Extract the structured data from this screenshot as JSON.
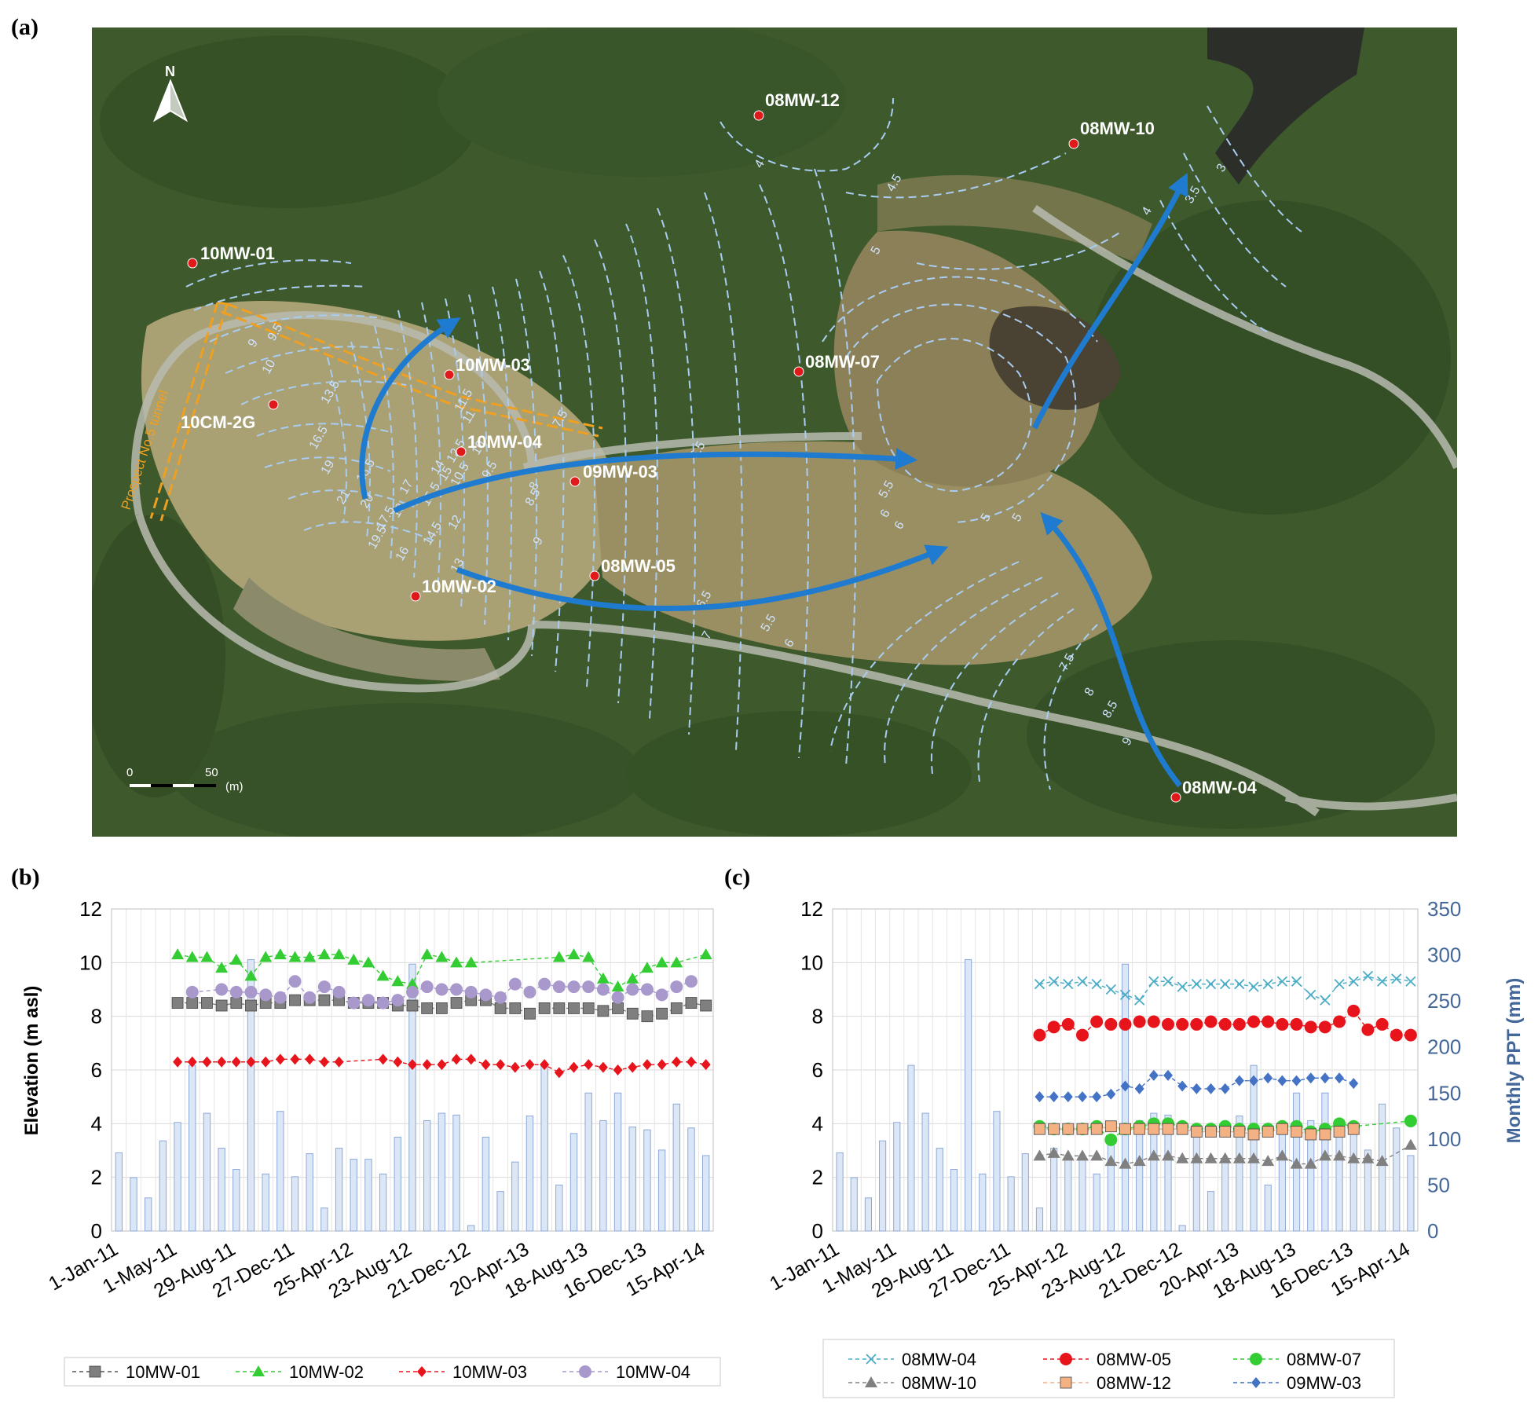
{
  "panels": {
    "a": "(a)",
    "b": "(b)",
    "c": "(c)"
  },
  "map": {
    "north_label": "N",
    "scale": {
      "start": "0",
      "end": "50",
      "unit": "(m)"
    },
    "tunnel_label": "Prospect No.5 tunnel",
    "colors": {
      "contour": "#a9cdf2",
      "flow_arrow": "#1e7bd0",
      "well": "#e0191b",
      "tunnel": "#f0a020"
    },
    "wells": [
      "10MW-01",
      "10MW-03",
      "10CM-2G",
      "10MW-04",
      "09MW-03",
      "10MW-02",
      "08MW-05",
      "08MW-12",
      "08MW-10",
      "08MW-07",
      "08MW-04"
    ],
    "contour_labels": [
      "9",
      "9.5",
      "10",
      "13.5",
      "16.5",
      "19",
      "21",
      "20",
      "19.5",
      "18.5",
      "17.5",
      "18",
      "17",
      "16",
      "15.5",
      "15",
      "14.5",
      "14",
      "13",
      "12.5",
      "12",
      "11.5",
      "11",
      "10.5",
      "10",
      "9.5",
      "9",
      "8.5",
      "8",
      "7.5",
      "6.5",
      "6",
      "5.5",
      "5",
      "7",
      "6.5",
      "6",
      "5.5",
      "7.5",
      "8",
      "8.5",
      "9",
      "4",
      "4.5",
      "5",
      "3",
      "3.5",
      "4",
      "5",
      "6"
    ]
  },
  "chart_b": {
    "ylabel": "Elevation (m asl)",
    "y_ticks": [
      "0",
      "2",
      "4",
      "6",
      "8",
      "10",
      "12"
    ],
    "x_ticks": [
      "1-Jan-11",
      "1-May-11",
      "29-Aug-11",
      "27-Dec-11",
      "25-Apr-12",
      "23-Aug-12",
      "21-Dec-12",
      "20-Apr-13",
      "18-Aug-13",
      "16-Dec-13",
      "15-Apr-14"
    ],
    "legend": [
      "10MW-01",
      "10MW-02",
      "10MW-03",
      "10MW-04"
    ]
  },
  "chart_c": {
    "ylabel_right": "Monthly PPT (mm)",
    "y_ticks": [
      "0",
      "2",
      "4",
      "6",
      "8",
      "10",
      "12"
    ],
    "y2_ticks": [
      "0",
      "50",
      "100",
      "150",
      "200",
      "250",
      "300",
      "350"
    ],
    "x_ticks": [
      "1-Jan-11",
      "1-May-11",
      "29-Aug-11",
      "27-Dec-11",
      "25-Apr-12",
      "23-Aug-12",
      "21-Dec-12",
      "20-Apr-13",
      "18-Aug-13",
      "16-Dec-13",
      "15-Apr-14"
    ],
    "legend": [
      "08MW-04",
      "08MW-05",
      "08MW-07",
      "08MW-10",
      "08MW-12",
      "09MW-03"
    ]
  },
  "chart_data": [
    {
      "type": "line",
      "title": "",
      "ylabel": "Elevation (m asl)",
      "ylim": [
        0,
        12
      ],
      "xlim_index": [
        0,
        40
      ],
      "grid": true,
      "legend_position": "bottom",
      "precipitation_mm": [
        85,
        58,
        36,
        98,
        118,
        180,
        128,
        90,
        67,
        295,
        62,
        130,
        59,
        84,
        25,
        90,
        78,
        78,
        62,
        102,
        290,
        120,
        128,
        126,
        6,
        102,
        43,
        75,
        125,
        180,
        50,
        106,
        150,
        120,
        150,
        113,
        110,
        88,
        138,
        112,
        82
      ],
      "series": [
        {
          "name": "10MW-01",
          "color": "#7f7f7f",
          "marker": "square",
          "x": [
            4,
            5,
            6,
            7,
            8,
            9,
            10,
            11,
            12,
            13,
            14,
            15,
            16,
            17,
            18,
            19,
            20,
            21,
            22,
            23,
            24,
            25,
            26,
            27,
            28,
            29,
            30,
            31,
            32,
            33,
            34,
            35,
            36,
            37,
            38,
            39,
            40
          ],
          "values": [
            8.5,
            8.5,
            8.5,
            8.4,
            8.5,
            8.4,
            8.5,
            8.5,
            8.6,
            8.6,
            8.6,
            8.6,
            8.5,
            8.5,
            8.5,
            8.4,
            8.4,
            8.3,
            8.3,
            8.5,
            8.6,
            8.6,
            8.3,
            8.3,
            8.1,
            8.3,
            8.3,
            8.3,
            8.3,
            8.2,
            8.3,
            8.1,
            8.0,
            8.1,
            8.3,
            8.5,
            8.4
          ]
        },
        {
          "name": "10MW-02",
          "color": "#33cc33",
          "marker": "triangle",
          "x": [
            4,
            5,
            6,
            7,
            8,
            9,
            10,
            11,
            12,
            13,
            14,
            15,
            16,
            17,
            18,
            19,
            20,
            21,
            22,
            23,
            24,
            30,
            31,
            32,
            33,
            34,
            35,
            36,
            37,
            38,
            40
          ],
          "values": [
            10.3,
            10.2,
            10.2,
            9.8,
            10.1,
            9.5,
            10.2,
            10.3,
            10.2,
            10.2,
            10.3,
            10.3,
            10.1,
            10.0,
            9.5,
            9.3,
            9.2,
            10.3,
            10.2,
            10.0,
            10.0,
            10.2,
            10.3,
            10.2,
            9.4,
            9.1,
            9.4,
            9.8,
            10.0,
            10.0,
            10.3
          ]
        },
        {
          "name": "10MW-03",
          "color": "#e8141c",
          "marker": "diamond",
          "x": [
            4,
            5,
            6,
            7,
            8,
            9,
            10,
            11,
            12,
            13,
            14,
            15,
            18,
            19,
            20,
            21,
            22,
            23,
            24,
            25,
            26,
            27,
            28,
            29,
            30,
            31,
            32,
            33,
            34,
            35,
            36,
            37,
            38,
            39,
            40
          ],
          "values": [
            6.3,
            6.3,
            6.3,
            6.3,
            6.3,
            6.3,
            6.3,
            6.4,
            6.4,
            6.4,
            6.3,
            6.3,
            6.4,
            6.3,
            6.2,
            6.2,
            6.2,
            6.4,
            6.4,
            6.2,
            6.2,
            6.1,
            6.2,
            6.2,
            5.9,
            6.1,
            6.2,
            6.1,
            6.0,
            6.1,
            6.2,
            6.2,
            6.3,
            6.3,
            6.2
          ]
        },
        {
          "name": "10MW-04",
          "color": "#a898cc",
          "marker": "circle",
          "x": [
            5,
            7,
            8,
            9,
            10,
            11,
            12,
            13,
            14,
            15,
            16,
            17,
            18,
            19,
            20,
            21,
            22,
            23,
            24,
            25,
            26,
            27,
            28,
            29,
            30,
            31,
            32,
            33,
            34,
            35,
            36,
            37,
            38,
            39
          ],
          "values": [
            8.9,
            9.0,
            8.9,
            8.9,
            8.8,
            8.7,
            9.3,
            8.7,
            9.1,
            8.9,
            8.5,
            8.6,
            8.5,
            8.6,
            8.9,
            9.1,
            9.0,
            9.0,
            8.9,
            8.8,
            8.7,
            9.2,
            8.9,
            9.2,
            9.1,
            9.1,
            9.1,
            9.0,
            8.7,
            9.0,
            9.0,
            8.8,
            9.1,
            9.3
          ]
        }
      ]
    },
    {
      "type": "line",
      "title": "",
      "ylabel": "",
      "y2label": "Monthly PPT (mm)",
      "ylim": [
        0,
        12
      ],
      "y2lim": [
        0,
        350
      ],
      "xlim_index": [
        0,
        40
      ],
      "grid": true,
      "legend_position": "bottom",
      "precipitation_mm": [
        85,
        58,
        36,
        98,
        118,
        180,
        128,
        90,
        67,
        295,
        62,
        130,
        59,
        84,
        25,
        90,
        78,
        78,
        62,
        102,
        290,
        120,
        128,
        126,
        6,
        102,
        43,
        75,
        125,
        180,
        50,
        106,
        150,
        120,
        150,
        113,
        110,
        88,
        138,
        112,
        82
      ],
      "series": [
        {
          "name": "08MW-04",
          "color": "#4bacc6",
          "marker": "x",
          "x": [
            14,
            15,
            16,
            17,
            18,
            19,
            20,
            21,
            22,
            23,
            24,
            25,
            26,
            27,
            28,
            29,
            30,
            31,
            32,
            33,
            34,
            35,
            36,
            37,
            38,
            39,
            40
          ],
          "values": [
            9.2,
            9.3,
            9.2,
            9.3,
            9.2,
            9.0,
            8.8,
            8.6,
            9.3,
            9.3,
            9.1,
            9.2,
            9.2,
            9.2,
            9.2,
            9.1,
            9.2,
            9.3,
            9.3,
            8.8,
            8.6,
            9.2,
            9.3,
            9.5,
            9.3,
            9.4,
            9.3
          ]
        },
        {
          "name": "08MW-05",
          "color": "#e8141c",
          "marker": "circle",
          "x": [
            14,
            15,
            16,
            17,
            18,
            19,
            20,
            21,
            22,
            23,
            24,
            25,
            26,
            27,
            28,
            29,
            30,
            31,
            32,
            33,
            34,
            35,
            36,
            37,
            38,
            39,
            40
          ],
          "values": [
            7.3,
            7.6,
            7.7,
            7.3,
            7.8,
            7.7,
            7.7,
            7.8,
            7.8,
            7.7,
            7.7,
            7.7,
            7.8,
            7.7,
            7.7,
            7.8,
            7.8,
            7.7,
            7.7,
            7.6,
            7.6,
            7.8,
            8.2,
            7.5,
            7.7,
            7.3,
            7.3
          ]
        },
        {
          "name": "08MW-07",
          "color": "#33cc33",
          "marker": "circle",
          "x": [
            14,
            15,
            16,
            17,
            18,
            19,
            20,
            21,
            22,
            23,
            24,
            25,
            26,
            27,
            28,
            29,
            30,
            31,
            32,
            33,
            34,
            35,
            36,
            40
          ],
          "values": [
            3.9,
            3.8,
            3.8,
            3.8,
            3.9,
            3.4,
            3.8,
            3.9,
            4.0,
            4.0,
            3.9,
            3.8,
            3.8,
            3.9,
            3.8,
            3.8,
            3.8,
            3.9,
            3.9,
            3.7,
            3.8,
            4.0,
            3.9,
            4.1
          ]
        },
        {
          "name": "08MW-10",
          "color": "#808080",
          "marker": "triangle",
          "x": [
            14,
            15,
            16,
            17,
            18,
            19,
            20,
            21,
            22,
            23,
            24,
            25,
            26,
            27,
            28,
            29,
            30,
            31,
            32,
            33,
            34,
            35,
            36,
            37,
            38,
            40
          ],
          "values": [
            2.8,
            2.9,
            2.8,
            2.8,
            2.8,
            2.6,
            2.5,
            2.6,
            2.8,
            2.8,
            2.7,
            2.7,
            2.7,
            2.7,
            2.7,
            2.7,
            2.6,
            2.8,
            2.5,
            2.5,
            2.8,
            2.8,
            2.7,
            2.7,
            2.6,
            3.2
          ]
        },
        {
          "name": "08MW-12",
          "color": "#f4b183",
          "marker": "square",
          "x": [
            14,
            15,
            16,
            17,
            18,
            19,
            20,
            21,
            22,
            23,
            24,
            25,
            26,
            27,
            28,
            29,
            30,
            31,
            32,
            33,
            34,
            35,
            36
          ],
          "values": [
            3.8,
            3.8,
            3.8,
            3.8,
            3.8,
            3.9,
            3.8,
            3.8,
            3.8,
            3.8,
            3.8,
            3.7,
            3.7,
            3.7,
            3.7,
            3.6,
            3.7,
            3.8,
            3.7,
            3.6,
            3.6,
            3.7,
            3.8
          ]
        },
        {
          "name": "09MW-03",
          "color": "#4472c4",
          "marker": "diamond",
          "x": [
            14,
            15,
            16,
            17,
            18,
            19,
            20,
            21,
            22,
            23,
            24,
            25,
            26,
            27,
            28,
            29,
            30,
            31,
            32,
            33,
            34,
            35,
            36
          ],
          "values": [
            5.0,
            5.0,
            5.0,
            5.0,
            5.0,
            5.1,
            5.4,
            5.3,
            5.8,
            5.8,
            5.4,
            5.3,
            5.3,
            5.3,
            5.6,
            5.6,
            5.7,
            5.6,
            5.6,
            5.7,
            5.7,
            5.7,
            5.5
          ]
        }
      ]
    }
  ]
}
